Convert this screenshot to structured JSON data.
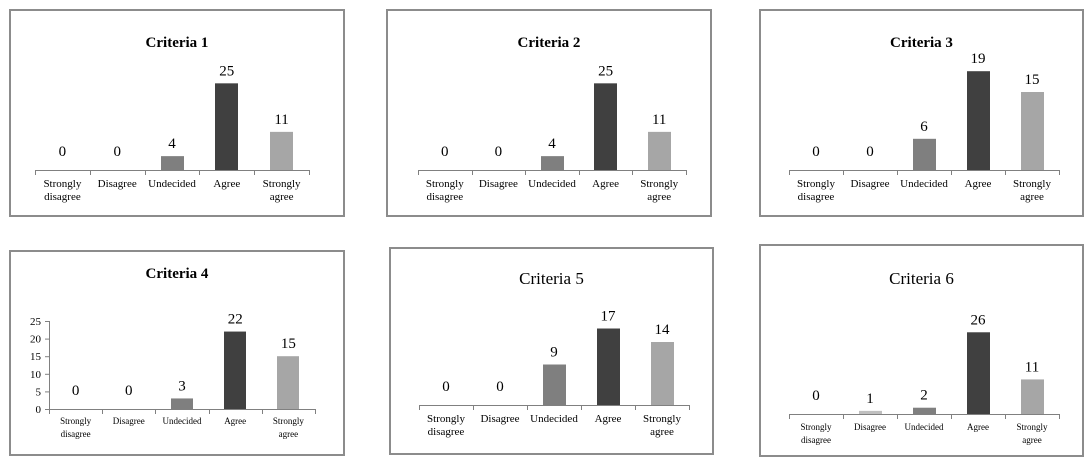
{
  "colors": {
    "shade_by_category": [
      "#bfbfbf",
      "#bfbfbf",
      "#7f7f7f",
      "#404040",
      "#a6a6a6"
    ],
    "axis": "#808080",
    "frame": "#8c8c8c"
  },
  "chart_data": [
    {
      "type": "bar",
      "title": "Criteria 1",
      "categories": [
        [
          "Strongly",
          "disagree"
        ],
        [
          "Disagree"
        ],
        [
          "Undecided"
        ],
        [
          "Agree"
        ],
        [
          "Strongly",
          "agree"
        ]
      ],
      "values": [
        0,
        0,
        4,
        25,
        11
      ],
      "ylim": [
        0,
        30
      ],
      "y_axis_shown": false,
      "data_labels": true
    },
    {
      "type": "bar",
      "title": "Criteria 2",
      "categories": [
        [
          "Strongly",
          "disagree"
        ],
        [
          "Disagree"
        ],
        [
          "Undecided"
        ],
        [
          "Agree"
        ],
        [
          "Strongly",
          "agree"
        ]
      ],
      "values": [
        0,
        0,
        4,
        25,
        11
      ],
      "ylim": [
        0,
        30
      ],
      "y_axis_shown": false,
      "data_labels": true
    },
    {
      "type": "bar",
      "title": "Criteria 3",
      "categories": [
        [
          "Strongly",
          "disagree"
        ],
        [
          "Disagree"
        ],
        [
          "Undecided"
        ],
        [
          "Agree"
        ],
        [
          "Strongly",
          "agree"
        ]
      ],
      "values": [
        0,
        0,
        6,
        19,
        15
      ],
      "ylim": [
        0,
        20
      ],
      "y_axis_shown": false,
      "data_labels": true
    },
    {
      "type": "bar",
      "title": "Criteria 4",
      "categories": [
        [
          "Strongly",
          "disagree"
        ],
        [
          "Disagree"
        ],
        [
          "Undecided"
        ],
        [
          "Agree"
        ],
        [
          "Strongly",
          "agree"
        ]
      ],
      "values": [
        0,
        0,
        3,
        22,
        15
      ],
      "ylim": [
        0,
        25
      ],
      "yticks": [
        0,
        5,
        10,
        15,
        20,
        25
      ],
      "y_axis_shown": true,
      "data_labels": true
    },
    {
      "type": "bar",
      "title": "Criteria 5",
      "categories": [
        [
          "Strongly",
          "disagree"
        ],
        [
          "Disagree"
        ],
        [
          "Undecided"
        ],
        [
          "Agree"
        ],
        [
          "Strongly",
          "agree"
        ]
      ],
      "values": [
        0,
        0,
        9,
        17,
        14
      ],
      "ylim": [
        0,
        20
      ],
      "y_axis_shown": false,
      "data_labels": true
    },
    {
      "type": "bar",
      "title": "Criteria 6",
      "categories": [
        [
          "Strongly",
          "disagree"
        ],
        [
          "Disagree"
        ],
        [
          "Undecided"
        ],
        [
          "Agree"
        ],
        [
          "Strongly",
          "agree"
        ]
      ],
      "values": [
        0,
        1,
        2,
        26,
        11
      ],
      "ylim": [
        0,
        35
      ],
      "y_axis_shown": false,
      "data_labels": true
    }
  ]
}
